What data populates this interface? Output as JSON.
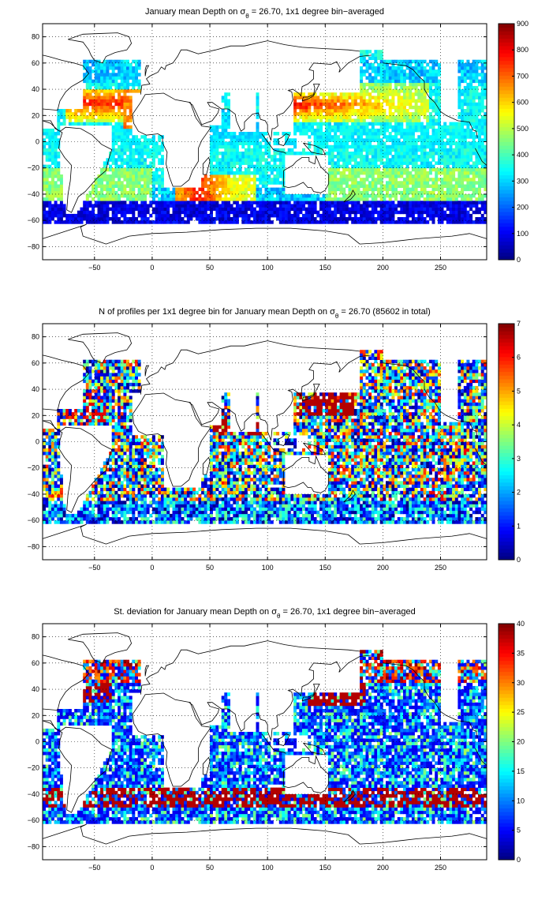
{
  "chart_data": [
    {
      "type": "heatmap",
      "title": "January mean Depth on σ",
      "title_sub": "θ",
      "title_rest": " = 26.70, 1x1 degree bin−averaged",
      "x_ticks": [
        "−50",
        "0",
        "50",
        "100",
        "150",
        "200",
        "250"
      ],
      "x_tick_values": [
        -50,
        0,
        50,
        100,
        150,
        200,
        250
      ],
      "y_ticks": [
        "80",
        "60",
        "40",
        "20",
        "0",
        "−20",
        "−40",
        "−60",
        "−80"
      ],
      "y_tick_values": [
        80,
        60,
        40,
        20,
        0,
        -20,
        -40,
        -60,
        -80
      ],
      "xlim": [
        -95,
        290
      ],
      "ylim": [
        -90,
        90
      ],
      "colorbar_ticks": [
        "900",
        "800",
        "700",
        "600",
        "500",
        "400",
        "300",
        "200",
        "100",
        "0"
      ],
      "colorbar_range": [
        0,
        900
      ],
      "colormap": "jet",
      "field": "depth",
      "grid": "dotted"
    },
    {
      "type": "heatmap",
      "title": "N of profiles per 1x1 degree bin for January mean Depth on σ",
      "title_sub": "θ",
      "title_rest": " = 26.70 (85602 in total)",
      "x_ticks": [
        "−50",
        "0",
        "50",
        "100",
        "150",
        "200",
        "250"
      ],
      "x_tick_values": [
        -50,
        0,
        50,
        100,
        150,
        200,
        250
      ],
      "y_ticks": [
        "80",
        "60",
        "40",
        "20",
        "0",
        "−20",
        "−40",
        "−60",
        "−80"
      ],
      "y_tick_values": [
        80,
        60,
        40,
        20,
        0,
        -20,
        -40,
        -60,
        -80
      ],
      "xlim": [
        -95,
        290
      ],
      "ylim": [
        -90,
        90
      ],
      "colorbar_ticks": [
        "7",
        "6",
        "5",
        "4",
        "3",
        "2",
        "1",
        "0"
      ],
      "colorbar_range": [
        0,
        7
      ],
      "colormap": "jet",
      "field": "count",
      "grid": "dotted"
    },
    {
      "type": "heatmap",
      "title": "St. deviation for January mean Depth on σ",
      "title_sub": "θ",
      "title_rest": " = 26.70, 1x1 degree bin−averaged",
      "x_ticks": [
        "−50",
        "0",
        "50",
        "100",
        "150",
        "200",
        "250"
      ],
      "x_tick_values": [
        -50,
        0,
        50,
        100,
        150,
        200,
        250
      ],
      "y_ticks": [
        "80",
        "60",
        "40",
        "20",
        "0",
        "−20",
        "−40",
        "−60",
        "−80"
      ],
      "y_tick_values": [
        80,
        60,
        40,
        20,
        0,
        -20,
        -40,
        -60,
        -80
      ],
      "xlim": [
        -95,
        290
      ],
      "ylim": [
        -90,
        90
      ],
      "colorbar_ticks": [
        "40",
        "35",
        "30",
        "25",
        "20",
        "15",
        "10",
        "5",
        "0"
      ],
      "colorbar_range": [
        0,
        40
      ],
      "colormap": "jet",
      "field": "stdev",
      "grid": "dotted"
    }
  ]
}
